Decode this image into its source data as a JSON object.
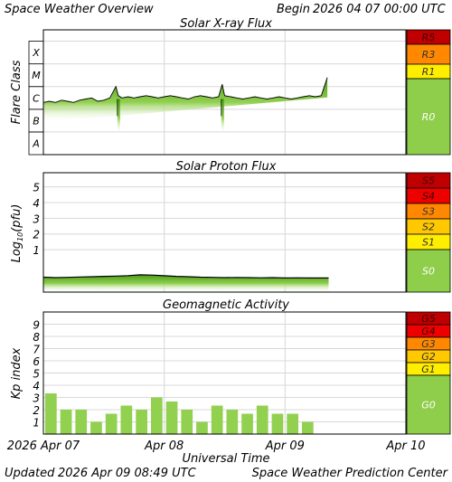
{
  "header": {
    "title": "Space Weather Overview",
    "begin_label": "Begin",
    "begin_date": "2026 04 07 00:00 UTC"
  },
  "footer": {
    "updated_label": "Updated",
    "updated_date": "2026 Apr 09 08:49 UTC",
    "center": "Space Weather Prediction Center"
  },
  "colors": {
    "extreme": "#c00000",
    "severe": "#ee0000",
    "strong": "#ff8800",
    "moderate": "#ffc800",
    "minor": "#ffee00",
    "quiet": "#8ece4a",
    "bar": "#92d050",
    "fill_light": "#d6f2b6"
  },
  "time_axis": {
    "title": "Universal Time",
    "tick_labels": [
      "2026 Apr 07",
      "Apr 08",
      "Apr 09",
      "Apr 10"
    ],
    "tick_days": [
      0,
      1,
      2,
      3
    ],
    "range_days": [
      0,
      3
    ]
  },
  "chart_data": [
    {
      "type": "area",
      "title": "Solar X-ray Flux",
      "ylabel": "Flare Class",
      "scale": "log",
      "y_tick_labels": [
        "A",
        "B",
        "C",
        "M",
        "X"
      ],
      "ylim_class": [
        -1,
        4.5
      ],
      "scale_levels": [
        {
          "label": "R5",
          "color": "#c00000"
        },
        {
          "label": "R3",
          "color": "#ff8800"
        },
        {
          "label": "R1",
          "color": "#ffee00"
        },
        {
          "label": "R0",
          "color": "#8ece4a"
        }
      ],
      "x_days": [
        0.0,
        0.05,
        0.1,
        0.15,
        0.2,
        0.25,
        0.3,
        0.35,
        0.4,
        0.45,
        0.5,
        0.55,
        0.6,
        0.62,
        0.65,
        0.7,
        0.75,
        0.8,
        0.85,
        0.9,
        0.95,
        1.0,
        1.05,
        1.1,
        1.15,
        1.2,
        1.25,
        1.3,
        1.35,
        1.4,
        1.45,
        1.48,
        1.5,
        1.55,
        1.6,
        1.65,
        1.7,
        1.75,
        1.8,
        1.85,
        1.9,
        1.95,
        2.0,
        2.05,
        2.1,
        2.15,
        2.2,
        2.25,
        2.3,
        2.35
      ],
      "y_class": [
        1.3,
        1.35,
        1.3,
        1.4,
        1.35,
        1.3,
        1.4,
        1.45,
        1.5,
        1.35,
        1.4,
        1.5,
        2.0,
        1.6,
        1.5,
        1.55,
        1.5,
        1.55,
        1.6,
        1.55,
        1.5,
        1.55,
        1.6,
        1.55,
        1.5,
        1.45,
        1.55,
        1.6,
        1.55,
        1.5,
        1.55,
        2.1,
        1.6,
        1.55,
        1.5,
        1.45,
        1.5,
        1.55,
        1.5,
        1.45,
        1.5,
        1.55,
        1.5,
        1.45,
        1.5,
        1.55,
        1.6,
        1.55,
        1.6,
        2.4
      ]
    },
    {
      "type": "area",
      "title": "Solar Proton Flux",
      "ylabel": "Log10(pfu)",
      "y_ticks": [
        1,
        2,
        3,
        4,
        5
      ],
      "ylim": [
        -1.7,
        5.9
      ],
      "scale_levels": [
        {
          "label": "S5",
          "color": "#c00000"
        },
        {
          "label": "S4",
          "color": "#ee0000"
        },
        {
          "label": "S3",
          "color": "#ff8800"
        },
        {
          "label": "S2",
          "color": "#ffc800"
        },
        {
          "label": "S1",
          "color": "#ffee00"
        },
        {
          "label": "S0",
          "color": "#8ece4a"
        }
      ],
      "x_days": [
        0.0,
        0.1,
        0.2,
        0.3,
        0.4,
        0.5,
        0.6,
        0.7,
        0.8,
        0.9,
        1.0,
        1.1,
        1.2,
        1.3,
        1.4,
        1.5,
        1.6,
        1.7,
        1.8,
        1.9,
        2.0,
        2.1,
        2.2,
        2.36
      ],
      "y": [
        -0.75,
        -0.78,
        -0.76,
        -0.74,
        -0.72,
        -0.7,
        -0.68,
        -0.65,
        -0.6,
        -0.62,
        -0.66,
        -0.7,
        -0.72,
        -0.75,
        -0.76,
        -0.78,
        -0.77,
        -0.78,
        -0.79,
        -0.78,
        -0.8,
        -0.79,
        -0.8,
        -0.8
      ]
    },
    {
      "type": "bar",
      "title": "Geomagnetic Activity",
      "ylabel": "Kp index",
      "y_ticks": [
        1,
        2,
        3,
        4,
        5,
        6,
        7,
        8,
        9
      ],
      "ylim": [
        0,
        10
      ],
      "scale_levels": [
        {
          "label": "G5",
          "color": "#c00000"
        },
        {
          "label": "G4",
          "color": "#ee0000"
        },
        {
          "label": "G3",
          "color": "#ff8800"
        },
        {
          "label": "G2",
          "color": "#ffc800"
        },
        {
          "label": "G1",
          "color": "#ffee00"
        },
        {
          "label": "G0",
          "color": "#8ece4a"
        }
      ],
      "interval_hours": 3,
      "values": [
        3.33,
        2.0,
        2.0,
        1.0,
        1.67,
        2.33,
        2.0,
        3.0,
        2.67,
        2.0,
        1.0,
        2.33,
        2.0,
        1.67,
        2.33,
        1.67,
        1.67,
        1.0
      ]
    }
  ]
}
